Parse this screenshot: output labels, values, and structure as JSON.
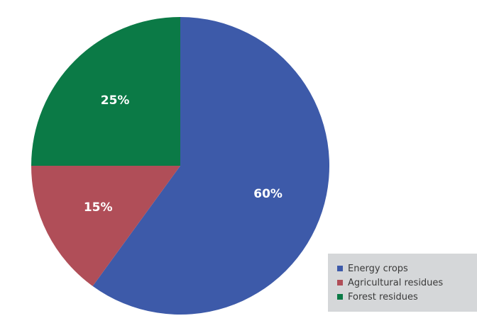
{
  "chart_data": {
    "type": "pie",
    "title": "",
    "slices": [
      {
        "name": "Energy crops",
        "value": 60,
        "label": "60%",
        "color": "#3d5aa9"
      },
      {
        "name": "Agricultural residues",
        "value": 15,
        "label": "15%",
        "color": "#b04e58"
      },
      {
        "name": "Forest residues",
        "value": 25,
        "label": "25%",
        "color": "#0b7a46"
      }
    ],
    "start_angle_deg": 0,
    "direction": "clockwise",
    "legend_position": "bottom-right"
  }
}
